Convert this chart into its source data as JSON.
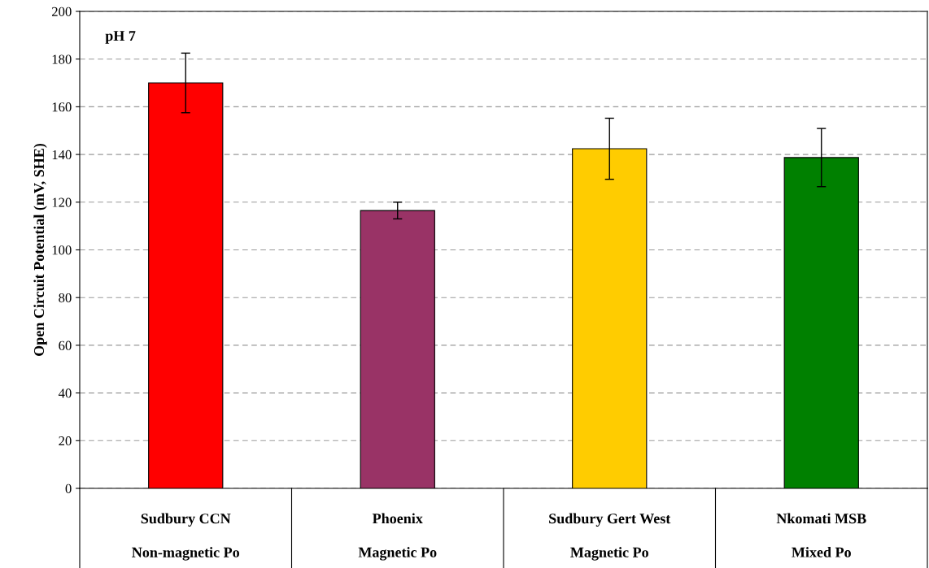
{
  "chart_data": {
    "type": "bar",
    "ylabel": "Open Circuit Potential (mV, SHE)",
    "categories": [
      "Sudbury CCN\n\nNon-magnetic Po",
      "Phoenix\n\nMagnetic Po",
      "Sudbury Gert West\n\nMagnetic Po",
      "Nkomati MSB\n\nMixed Po"
    ],
    "values": [
      170,
      116.5,
      142.4,
      138.7
    ],
    "colors": [
      "#ff0000",
      "#993366",
      "#ffcc00",
      "#008000"
    ],
    "errors": [
      12.5,
      3.5,
      12.8,
      12.2
    ],
    "ylim": [
      0,
      200
    ],
    "yticks": [
      0,
      20,
      40,
      60,
      80,
      100,
      120,
      140,
      160,
      180,
      200
    ],
    "grid": "y",
    "annotations": [
      "pH 7"
    ]
  }
}
